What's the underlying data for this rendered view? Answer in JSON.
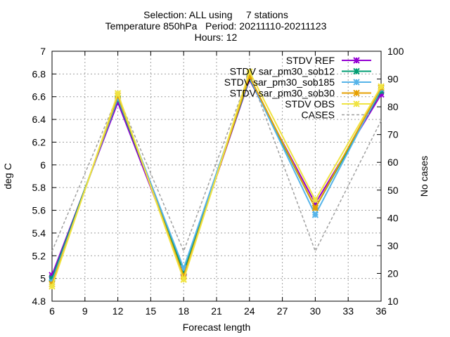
{
  "chart_data": {
    "type": "line",
    "title_lines": [
      "Selection: ALL using     7 stations",
      "Temperature 850hPa   Period: 20211110-20211123",
      "Hours: 12"
    ],
    "xlabel": "Forecast length",
    "ylabel": "deg C",
    "y2label": "No cases",
    "x": [
      6,
      12,
      18,
      24,
      30,
      36
    ],
    "xlim": [
      6,
      36
    ],
    "ylim": [
      4.8,
      7.0
    ],
    "y2lim": [
      10,
      100
    ],
    "xticks": [
      "6",
      "9",
      "12",
      "15",
      "18",
      "21",
      "24",
      "27",
      "30",
      "33",
      "36"
    ],
    "yticks": [
      "4.8",
      "5",
      "5.2",
      "5.4",
      "5.6",
      "5.8",
      "6",
      "6.2",
      "6.4",
      "6.6",
      "6.8",
      "7"
    ],
    "y2ticks": [
      "10",
      "20",
      "30",
      "40",
      "50",
      "60",
      "70",
      "80",
      "90",
      "100"
    ],
    "grid": true,
    "legend_position": "top-right",
    "series": [
      {
        "name": "STDV REF",
        "color": "#9400d3",
        "axis": "y1",
        "marker": "x-star",
        "values": [
          5.03,
          6.55,
          5.05,
          6.75,
          5.66,
          6.62
        ]
      },
      {
        "name": "STDV sar_pm30_sob12",
        "color": "#009e73",
        "axis": "y1",
        "marker": "x-star",
        "values": [
          5.0,
          6.58,
          5.06,
          6.76,
          5.62,
          6.65
        ]
      },
      {
        "name": "STDV sar_pm30_sob185",
        "color": "#56b4e9",
        "axis": "y1",
        "marker": "x-star",
        "values": [
          4.97,
          6.59,
          5.09,
          6.77,
          5.56,
          6.67
        ]
      },
      {
        "name": "STDV sar_pm30_sob30",
        "color": "#e69f00",
        "axis": "y1",
        "marker": "x-star",
        "values": [
          4.95,
          6.61,
          5.02,
          6.78,
          5.62,
          6.68
        ]
      },
      {
        "name": "STDV OBS",
        "color": "#f0e442",
        "axis": "y1",
        "marker": "x-star",
        "values": [
          4.93,
          6.63,
          4.99,
          6.82,
          5.69,
          6.69
        ]
      },
      {
        "name": "CASES",
        "color": "#a0a0a0",
        "axis": "y2",
        "dashed": true,
        "values": [
          28,
          84,
          28,
          92,
          28,
          75
        ]
      }
    ]
  }
}
